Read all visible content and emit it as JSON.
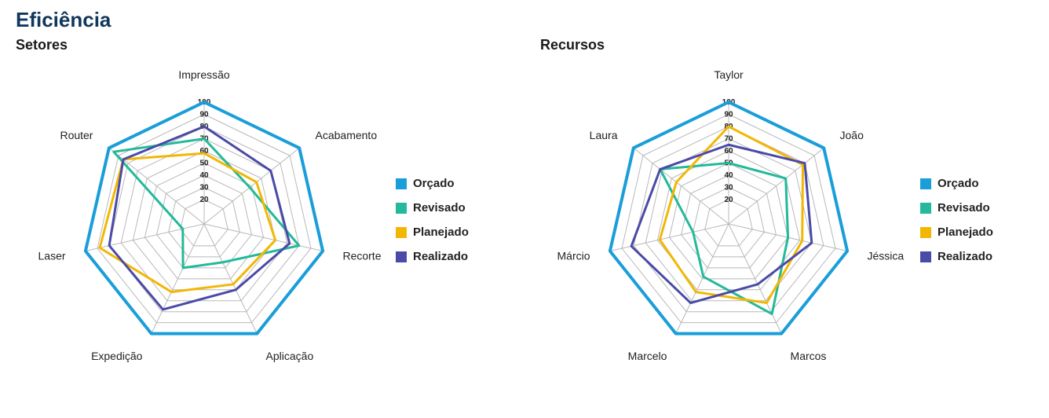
{
  "page_title": "Eficiência",
  "background_color": "#ffffff",
  "grid_color": "#b8b8b8",
  "tick_min": 20,
  "tick_max": 100,
  "tick_step": 10,
  "legend": [
    {
      "label": "Orçado",
      "color": "#199ed9"
    },
    {
      "label": "Revisado",
      "color": "#23b99a"
    },
    {
      "label": "Planejado",
      "color": "#f2b705"
    },
    {
      "label": "Realizado",
      "color": "#4a4aa8"
    }
  ],
  "charts": [
    {
      "title": "Setores",
      "type": "radar",
      "axes": [
        "Impressão",
        "Acabamento",
        "Recorte",
        "Aplicação",
        "Expedição",
        "Laser",
        "Router"
      ],
      "series": [
        {
          "name": "Orçado",
          "color": "#199ed9",
          "line_width": 4,
          "values": [
            100,
            100,
            100,
            100,
            100,
            100,
            100
          ]
        },
        {
          "name": "Revisado",
          "color": "#23b99a",
          "line_width": 3,
          "values": [
            70,
            48,
            80,
            35,
            40,
            18,
            95
          ]
        },
        {
          "name": "Planejado",
          "color": "#f2b705",
          "line_width": 3,
          "values": [
            58,
            55,
            60,
            55,
            62,
            88,
            85
          ]
        },
        {
          "name": "Realizado",
          "color": "#4a4aa8",
          "line_width": 3,
          "values": [
            80,
            70,
            72,
            60,
            78,
            80,
            85
          ]
        }
      ]
    },
    {
      "title": "Recursos",
      "type": "radar",
      "axes": [
        "Taylor",
        "João",
        "Jéssica",
        "Marcos",
        "Marcelo",
        "Márcio",
        "Laura"
      ],
      "series": [
        {
          "name": "Orçado",
          "color": "#199ed9",
          "line_width": 4,
          "values": [
            100,
            100,
            100,
            100,
            100,
            100,
            100
          ]
        },
        {
          "name": "Revisado",
          "color": "#23b99a",
          "line_width": 3,
          "values": [
            50,
            60,
            50,
            82,
            48,
            30,
            72
          ]
        },
        {
          "name": "Planejado",
          "color": "#f2b705",
          "line_width": 3,
          "values": [
            80,
            78,
            62,
            72,
            62,
            58,
            55
          ]
        },
        {
          "name": "Realizado",
          "color": "#4a4aa8",
          "line_width": 3,
          "values": [
            65,
            80,
            70,
            55,
            72,
            82,
            72
          ]
        }
      ]
    }
  ]
}
